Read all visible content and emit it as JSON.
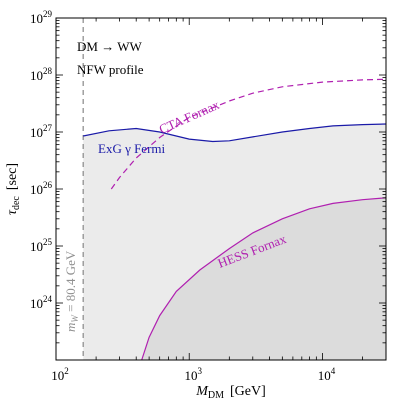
{
  "chart_data": {
    "type": "line",
    "xscale": "log",
    "yscale": "log",
    "xlim": [
      100,
      30000
    ],
    "ylim": [
      1e+23,
      1e+29
    ],
    "xlabel": {
      "main": "M",
      "sub": "DM",
      "unit": "[GeV]"
    },
    "ylabel": {
      "main": "τ",
      "sub": "dec",
      "unit": "[sec]"
    },
    "x_ticks": [
      {
        "value": 100,
        "base": "10",
        "exp": "2"
      },
      {
        "value": 1000,
        "base": "10",
        "exp": "3"
      },
      {
        "value": 10000,
        "base": "10",
        "exp": "4"
      }
    ],
    "y_ticks": [
      {
        "value": 1e+24,
        "base": "10",
        "exp": "24"
      },
      {
        "value": 1e+25,
        "base": "10",
        "exp": "25"
      },
      {
        "value": 1e+26,
        "base": "10",
        "exp": "26"
      },
      {
        "value": 1e+27,
        "base": "10",
        "exp": "27"
      },
      {
        "value": 1e+28,
        "base": "10",
        "exp": "28"
      },
      {
        "value": 1e+29,
        "base": "10",
        "exp": "29"
      }
    ],
    "annotations": {
      "line1": "DM → WW",
      "line2": "NFW profile",
      "mw_label": "m",
      "mw_sub": "W",
      "mw_value": " = 80.4 GeV"
    },
    "mw_line_x": 160,
    "colors": {
      "fermi": "#1a1aa8",
      "cta": "#b020b0",
      "hess": "#b020b0",
      "fermi_fill": "#ebebeb",
      "hess_fill": "#dcdcdc",
      "mw_line": "#909090"
    },
    "series": [
      {
        "name": "ExG γ Fermi",
        "style": "solid",
        "points": [
          [
            160,
            8.5e+26
          ],
          [
            250,
            1.05e+27
          ],
          [
            400,
            1.15e+27
          ],
          [
            600,
            1e+27
          ],
          [
            1000,
            7.5e+26
          ],
          [
            1500,
            6.8e+26
          ],
          [
            2000,
            7e+26
          ],
          [
            3000,
            8.2e+26
          ],
          [
            5000,
            1e+27
          ],
          [
            8000,
            1.15e+27
          ],
          [
            12000,
            1.28e+27
          ],
          [
            20000,
            1.35e+27
          ],
          [
            30000,
            1.38e+27
          ]
        ]
      },
      {
        "name": "CTA Fornax",
        "style": "dashed",
        "points": [
          [
            260,
            1e+26
          ],
          [
            300,
            1.6e+26
          ],
          [
            400,
            3.5e+26
          ],
          [
            600,
            8e+26
          ],
          [
            1000,
            1.8e+27
          ],
          [
            2000,
            3.5e+27
          ],
          [
            3000,
            4.8e+27
          ],
          [
            5000,
            6.2e+27
          ],
          [
            10000,
            7.5e+27
          ],
          [
            20000,
            8.2e+27
          ],
          [
            30000,
            8.4e+27
          ]
        ]
      },
      {
        "name": "HESS Fornax",
        "style": "solid",
        "points": [
          [
            440,
            1e+23
          ],
          [
            500,
            2.5e+23
          ],
          [
            600,
            6e+23
          ],
          [
            800,
            1.6e+24
          ],
          [
            1200,
            3.8e+24
          ],
          [
            2000,
            9e+24
          ],
          [
            3000,
            1.7e+25
          ],
          [
            5000,
            3e+25
          ],
          [
            8000,
            4.5e+25
          ],
          [
            12000,
            5.6e+25
          ],
          [
            20000,
            6.5e+25
          ],
          [
            30000,
            7e+25
          ]
        ]
      }
    ],
    "series_labels": {
      "fermi": "ExG γ Fermi",
      "cta": "CTA Fornax",
      "hess": "HESS Fornax"
    }
  }
}
